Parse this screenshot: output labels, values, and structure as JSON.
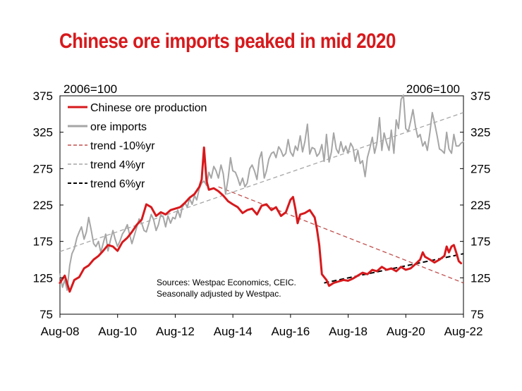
{
  "chart_data": {
    "type": "line",
    "title": "Chinese ore imports peaked in mid 2020",
    "y_left_label": "2006=100",
    "y_right_label": "2006=100",
    "ylim": [
      75,
      375
    ],
    "yticks": [
      75,
      125,
      175,
      225,
      275,
      325,
      375
    ],
    "xlim": [
      2008.583,
      2022.583
    ],
    "xticks": [
      {
        "label": "Aug-08",
        "x": 2008.583
      },
      {
        "label": "Aug-10",
        "x": 2010.583
      },
      {
        "label": "Aug-12",
        "x": 2012.583
      },
      {
        "label": "Aug-14",
        "x": 2014.583
      },
      {
        "label": "Aug-16",
        "x": 2016.583
      },
      {
        "label": "Aug-18",
        "x": 2018.583
      },
      {
        "label": "Aug-20",
        "x": 2020.583
      },
      {
        "label": "Aug-22",
        "x": 2022.583
      }
    ],
    "legend_position": "top-left",
    "series": [
      {
        "name": "Chinese ore production",
        "color": "#d7191c",
        "dash": "solid",
        "width": 3,
        "points": [
          [
            2008.58,
            118
          ],
          [
            2008.75,
            128
          ],
          [
            2008.92,
            106
          ],
          [
            2009.08,
            122
          ],
          [
            2009.25,
            126
          ],
          [
            2009.42,
            138
          ],
          [
            2009.58,
            142
          ],
          [
            2009.75,
            150
          ],
          [
            2009.92,
            155
          ],
          [
            2010.08,
            162
          ],
          [
            2010.25,
            170
          ],
          [
            2010.42,
            168
          ],
          [
            2010.58,
            162
          ],
          [
            2010.75,
            174
          ],
          [
            2010.92,
            180
          ],
          [
            2011.08,
            188
          ],
          [
            2011.25,
            198
          ],
          [
            2011.42,
            205
          ],
          [
            2011.58,
            226
          ],
          [
            2011.75,
            222
          ],
          [
            2011.92,
            210
          ],
          [
            2012.08,
            215
          ],
          [
            2012.25,
            212
          ],
          [
            2012.42,
            218
          ],
          [
            2012.58,
            220
          ],
          [
            2012.75,
            222
          ],
          [
            2012.92,
            228
          ],
          [
            2013.08,
            235
          ],
          [
            2013.25,
            240
          ],
          [
            2013.42,
            250
          ],
          [
            2013.5,
            260
          ],
          [
            2013.58,
            304
          ],
          [
            2013.67,
            258
          ],
          [
            2013.75,
            246
          ],
          [
            2013.92,
            248
          ],
          [
            2014.08,
            244
          ],
          [
            2014.25,
            238
          ],
          [
            2014.42,
            230
          ],
          [
            2014.58,
            226
          ],
          [
            2014.75,
            222
          ],
          [
            2014.92,
            214
          ],
          [
            2015.08,
            218
          ],
          [
            2015.25,
            220
          ],
          [
            2015.42,
            212
          ],
          [
            2015.58,
            224
          ],
          [
            2015.75,
            226
          ],
          [
            2015.92,
            218
          ],
          [
            2016.08,
            222
          ],
          [
            2016.25,
            210
          ],
          [
            2016.42,
            215
          ],
          [
            2016.58,
            232
          ],
          [
            2016.67,
            236
          ],
          [
            2016.75,
            220
          ],
          [
            2016.83,
            200
          ],
          [
            2016.92,
            212
          ],
          [
            2017.08,
            214
          ],
          [
            2017.25,
            218
          ],
          [
            2017.42,
            208
          ],
          [
            2017.5,
            192
          ],
          [
            2017.58,
            170
          ],
          [
            2017.67,
            130
          ],
          [
            2017.75,
            126
          ],
          [
            2017.83,
            122
          ],
          [
            2017.92,
            114
          ],
          [
            2018.08,
            118
          ],
          [
            2018.25,
            120
          ],
          [
            2018.42,
            122
          ],
          [
            2018.58,
            121
          ],
          [
            2018.75,
            124
          ],
          [
            2018.92,
            128
          ],
          [
            2019.08,
            132
          ],
          [
            2019.25,
            130
          ],
          [
            2019.42,
            136
          ],
          [
            2019.58,
            134
          ],
          [
            2019.75,
            140
          ],
          [
            2019.92,
            136
          ],
          [
            2020.08,
            138
          ],
          [
            2020.25,
            134
          ],
          [
            2020.42,
            140
          ],
          [
            2020.58,
            136
          ],
          [
            2020.75,
            138
          ],
          [
            2020.92,
            144
          ],
          [
            2021.08,
            150
          ],
          [
            2021.17,
            160
          ],
          [
            2021.25,
            154
          ],
          [
            2021.42,
            150
          ],
          [
            2021.58,
            146
          ],
          [
            2021.75,
            150
          ],
          [
            2021.92,
            155
          ],
          [
            2022.0,
            168
          ],
          [
            2022.08,
            160
          ],
          [
            2022.17,
            168
          ],
          [
            2022.25,
            170
          ],
          [
            2022.33,
            160
          ],
          [
            2022.42,
            148
          ],
          [
            2022.5,
            145
          ]
        ]
      },
      {
        "name": "ore imports",
        "color": "#a6a6a6",
        "dash": "solid",
        "width": 2,
        "points": [
          [
            2008.58,
            130
          ],
          [
            2008.67,
            112
          ],
          [
            2008.75,
            122
          ],
          [
            2008.83,
            108
          ],
          [
            2008.92,
            142
          ],
          [
            2009.0,
            158
          ],
          [
            2009.08,
            165
          ],
          [
            2009.17,
            180
          ],
          [
            2009.25,
            188
          ],
          [
            2009.33,
            195
          ],
          [
            2009.42,
            178
          ],
          [
            2009.5,
            188
          ],
          [
            2009.58,
            208
          ],
          [
            2009.67,
            190
          ],
          [
            2009.75,
            172
          ],
          [
            2009.83,
            168
          ],
          [
            2009.92,
            175
          ],
          [
            2010.0,
            160
          ],
          [
            2010.08,
            172
          ],
          [
            2010.17,
            185
          ],
          [
            2010.25,
            162
          ],
          [
            2010.33,
            176
          ],
          [
            2010.42,
            190
          ],
          [
            2010.5,
            178
          ],
          [
            2010.58,
            168
          ],
          [
            2010.67,
            176
          ],
          [
            2010.75,
            185
          ],
          [
            2010.83,
            190
          ],
          [
            2010.92,
            198
          ],
          [
            2011.0,
            184
          ],
          [
            2011.08,
            172
          ],
          [
            2011.17,
            184
          ],
          [
            2011.25,
            195
          ],
          [
            2011.33,
            206
          ],
          [
            2011.42,
            200
          ],
          [
            2011.5,
            190
          ],
          [
            2011.58,
            188
          ],
          [
            2011.67,
            200
          ],
          [
            2011.75,
            212
          ],
          [
            2011.83,
            205
          ],
          [
            2011.92,
            190
          ],
          [
            2012.0,
            198
          ],
          [
            2012.08,
            212
          ],
          [
            2012.17,
            208
          ],
          [
            2012.25,
            195
          ],
          [
            2012.33,
            210
          ],
          [
            2012.42,
            200
          ],
          [
            2012.5,
            208
          ],
          [
            2012.58,
            206
          ],
          [
            2012.67,
            218
          ],
          [
            2012.75,
            208
          ],
          [
            2012.83,
            222
          ],
          [
            2012.92,
            228
          ],
          [
            2013.0,
            222
          ],
          [
            2013.08,
            234
          ],
          [
            2013.17,
            226
          ],
          [
            2013.25,
            238
          ],
          [
            2013.33,
            232
          ],
          [
            2013.42,
            248
          ],
          [
            2013.5,
            255
          ],
          [
            2013.58,
            258
          ],
          [
            2013.67,
            252
          ],
          [
            2013.75,
            270
          ],
          [
            2013.83,
            262
          ],
          [
            2013.92,
            278
          ],
          [
            2014.0,
            272
          ],
          [
            2014.08,
            262
          ],
          [
            2014.17,
            280
          ],
          [
            2014.25,
            268
          ],
          [
            2014.33,
            240
          ],
          [
            2014.42,
            262
          ],
          [
            2014.5,
            290
          ],
          [
            2014.58,
            272
          ],
          [
            2014.67,
            270
          ],
          [
            2014.75,
            262
          ],
          [
            2014.83,
            252
          ],
          [
            2014.92,
            262
          ],
          [
            2015.0,
            250
          ],
          [
            2015.08,
            255
          ],
          [
            2015.17,
            275
          ],
          [
            2015.25,
            280
          ],
          [
            2015.33,
            272
          ],
          [
            2015.42,
            260
          ],
          [
            2015.5,
            288
          ],
          [
            2015.58,
            298
          ],
          [
            2015.67,
            262
          ],
          [
            2015.75,
            272
          ],
          [
            2015.83,
            288
          ],
          [
            2015.92,
            296
          ],
          [
            2016.0,
            298
          ],
          [
            2016.08,
            290
          ],
          [
            2016.17,
            305
          ],
          [
            2016.25,
            300
          ],
          [
            2016.33,
            292
          ],
          [
            2016.42,
            296
          ],
          [
            2016.5,
            315
          ],
          [
            2016.58,
            298
          ],
          [
            2016.67,
            292
          ],
          [
            2016.75,
            306
          ],
          [
            2016.83,
            300
          ],
          [
            2016.92,
            320
          ],
          [
            2017.0,
            298
          ],
          [
            2017.08,
            312
          ],
          [
            2017.17,
            336
          ],
          [
            2017.25,
            295
          ],
          [
            2017.33,
            304
          ],
          [
            2017.42,
            302
          ],
          [
            2017.5,
            292
          ],
          [
            2017.58,
            296
          ],
          [
            2017.67,
            308
          ],
          [
            2017.75,
            285
          ],
          [
            2017.83,
            322
          ],
          [
            2017.92,
            284
          ],
          [
            2018.0,
            298
          ],
          [
            2018.08,
            324
          ],
          [
            2018.17,
            302
          ],
          [
            2018.25,
            296
          ],
          [
            2018.33,
            312
          ],
          [
            2018.42,
            298
          ],
          [
            2018.5,
            306
          ],
          [
            2018.58,
            296
          ],
          [
            2018.67,
            310
          ],
          [
            2018.75,
            304
          ],
          [
            2018.83,
            285
          ],
          [
            2018.92,
            300
          ],
          [
            2019.0,
            282
          ],
          [
            2019.08,
            286
          ],
          [
            2019.17,
            264
          ],
          [
            2019.25,
            290
          ],
          [
            2019.33,
            302
          ],
          [
            2019.42,
            318
          ],
          [
            2019.5,
            296
          ],
          [
            2019.58,
            310
          ],
          [
            2019.67,
            345
          ],
          [
            2019.75,
            300
          ],
          [
            2019.83,
            324
          ],
          [
            2019.92,
            310
          ],
          [
            2020.0,
            300
          ],
          [
            2020.08,
            328
          ],
          [
            2020.17,
            296
          ],
          [
            2020.25,
            342
          ],
          [
            2020.33,
            330
          ],
          [
            2020.42,
            370
          ],
          [
            2020.5,
            376
          ],
          [
            2020.58,
            330
          ],
          [
            2020.67,
            326
          ],
          [
            2020.75,
            340
          ],
          [
            2020.83,
            356
          ],
          [
            2020.92,
            332
          ],
          [
            2021.0,
            318
          ],
          [
            2021.08,
            322
          ],
          [
            2021.17,
            306
          ],
          [
            2021.25,
            312
          ],
          [
            2021.33,
            300
          ],
          [
            2021.42,
            325
          ],
          [
            2021.5,
            352
          ],
          [
            2021.58,
            338
          ],
          [
            2021.67,
            320
          ],
          [
            2021.75,
            302
          ],
          [
            2021.83,
            300
          ],
          [
            2021.92,
            296
          ],
          [
            2022.0,
            325
          ],
          [
            2022.08,
            302
          ],
          [
            2022.17,
            296
          ],
          [
            2022.25,
            322
          ],
          [
            2022.33,
            306
          ],
          [
            2022.42,
            306
          ],
          [
            2022.5,
            310
          ],
          [
            2022.58,
            312
          ]
        ]
      },
      {
        "name": "trend -10%yr",
        "color": "#c0504d",
        "dash": "6,4",
        "width": 1.3,
        "points": [
          [
            2014.08,
            250
          ],
          [
            2022.58,
            118
          ]
        ]
      },
      {
        "name": "trend 4%yr",
        "color": "#a6a6a6",
        "dash": "6,4",
        "width": 1.3,
        "points": [
          [
            2008.58,
            161
          ],
          [
            2022.58,
            352
          ]
        ]
      },
      {
        "name": "trend 6%yr",
        "color": "#000000",
        "dash": "7,4",
        "width": 2,
        "points": [
          [
            2017.75,
            118
          ],
          [
            2022.58,
            158
          ]
        ]
      }
    ],
    "annotation": [
      "Sources: Westpac Economics, CEIC.",
      "Seasonally adjusted by Westpac."
    ]
  }
}
